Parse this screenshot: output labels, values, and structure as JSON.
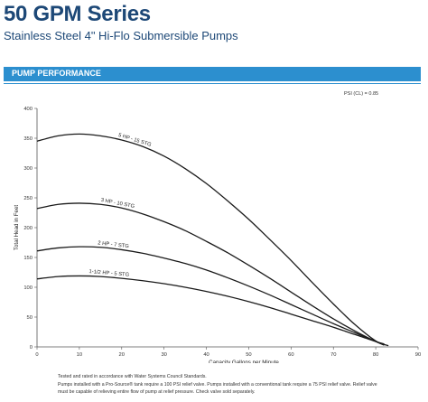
{
  "header": {
    "title": "50 GPM Series",
    "subtitle": "Stainless Steel 4\" Hi-Flo Submersible Pumps"
  },
  "section": {
    "title": "PUMP PERFORMANCE"
  },
  "pf_note": "PSI (CL) = 0.85",
  "footnotes": [
    "Tested and rated in accordance with Water Systems Council Standards.",
    "Pumps installed with a Pro-Source® tank require a 100 PSI relief valve. Pumps installed with a conventional tank require a 75 PSI relief valve. Relief valve",
    "must be capable of relieving entire flow of pump at relief pressure. Check valve sold separately."
  ],
  "colors": {
    "brand": "#1d4877",
    "accent": "#2c8fcf",
    "curve": "#1a1a1a"
  },
  "chart_data": {
    "type": "line",
    "title": "",
    "xlabel": "Capacity Gallons per Minute",
    "ylabel": "Total Head in Feet",
    "xlim": [
      0,
      90
    ],
    "ylim": [
      0,
      400
    ],
    "x_ticks": [
      0,
      10,
      20,
      30,
      40,
      50,
      60,
      70,
      80,
      90
    ],
    "y_ticks": [
      0,
      50,
      100,
      150,
      200,
      250,
      300,
      350,
      400
    ],
    "grid": false,
    "series": [
      {
        "name": "5 HP - 15 STG",
        "points": [
          [
            0,
            345
          ],
          [
            5,
            354
          ],
          [
            10,
            357
          ],
          [
            15,
            354
          ],
          [
            20,
            347
          ],
          [
            25,
            336
          ],
          [
            30,
            320
          ],
          [
            35,
            299
          ],
          [
            40,
            274
          ],
          [
            45,
            245
          ],
          [
            50,
            214
          ],
          [
            55,
            180
          ],
          [
            60,
            145
          ],
          [
            65,
            108
          ],
          [
            70,
            72
          ],
          [
            75,
            38
          ],
          [
            80,
            10
          ],
          [
            83,
            2
          ]
        ]
      },
      {
        "name": "3 HP - 10 STG",
        "points": [
          [
            0,
            232
          ],
          [
            5,
            239
          ],
          [
            10,
            241
          ],
          [
            15,
            239
          ],
          [
            20,
            233
          ],
          [
            25,
            223
          ],
          [
            30,
            210
          ],
          [
            35,
            195
          ],
          [
            40,
            177
          ],
          [
            45,
            158
          ],
          [
            50,
            137
          ],
          [
            55,
            115
          ],
          [
            60,
            92
          ],
          [
            65,
            69
          ],
          [
            70,
            47
          ],
          [
            75,
            27
          ],
          [
            80,
            9
          ],
          [
            82,
            3
          ]
        ]
      },
      {
        "name": "2 HP - 7 STG",
        "points": [
          [
            0,
            161
          ],
          [
            5,
            166
          ],
          [
            10,
            168
          ],
          [
            15,
            167
          ],
          [
            20,
            163
          ],
          [
            25,
            157
          ],
          [
            30,
            149
          ],
          [
            35,
            140
          ],
          [
            40,
            129
          ],
          [
            45,
            116
          ],
          [
            50,
            102
          ],
          [
            55,
            87
          ],
          [
            60,
            71
          ],
          [
            65,
            55
          ],
          [
            70,
            39
          ],
          [
            75,
            24
          ],
          [
            80,
            9
          ],
          [
            82,
            4
          ]
        ]
      },
      {
        "name": "1-1/2 HP - 5 STG",
        "points": [
          [
            0,
            114
          ],
          [
            5,
            118
          ],
          [
            10,
            119
          ],
          [
            15,
            118
          ],
          [
            20,
            115
          ],
          [
            25,
            111
          ],
          [
            30,
            106
          ],
          [
            35,
            100
          ],
          [
            40,
            93
          ],
          [
            45,
            85
          ],
          [
            50,
            76
          ],
          [
            55,
            66
          ],
          [
            60,
            55
          ],
          [
            65,
            44
          ],
          [
            70,
            33
          ],
          [
            75,
            21
          ],
          [
            80,
            9
          ],
          [
            82,
            5
          ]
        ]
      }
    ]
  }
}
